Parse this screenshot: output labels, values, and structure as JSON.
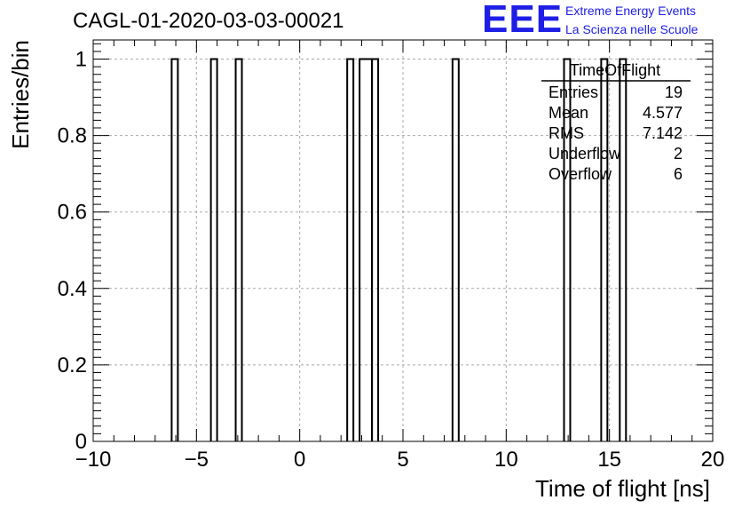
{
  "header": {
    "title": "CAGL-01-2020-03-03-00021",
    "logo_text": "EEE",
    "logo_line1": "Extreme Energy Events",
    "logo_line2": "La Scienza nelle Scuole",
    "logo_color": "#1e1ee6"
  },
  "stats_box": {
    "title": "TimeOfFlight",
    "rows": [
      {
        "label": "Entries",
        "value": "19"
      },
      {
        "label": "Mean",
        "value": "4.577"
      },
      {
        "label": "RMS",
        "value": "7.142"
      },
      {
        "label": "Underflow",
        "value": "2"
      },
      {
        "label": "Overflow",
        "value": "6"
      }
    ]
  },
  "chart_data": {
    "type": "bar",
    "histogram": true,
    "xlabel": "Time of flight [ns]",
    "ylabel": "Entries/bin",
    "xlim": [
      -10,
      20
    ],
    "ylim": [
      0,
      1.05
    ],
    "grid": true,
    "x_ticks": [
      "−10",
      "−5",
      "0",
      "5",
      "10",
      "15",
      "20"
    ],
    "y_ticks": [
      "0",
      "0.2",
      "0.4",
      "0.6",
      "0.8",
      "1"
    ],
    "bins": [
      {
        "x0": -6.2,
        "x1": -5.9,
        "count": 1
      },
      {
        "x0": -4.3,
        "x1": -4.0,
        "count": 1
      },
      {
        "x0": -3.1,
        "x1": -2.8,
        "count": 1
      },
      {
        "x0": 2.3,
        "x1": 2.6,
        "count": 1
      },
      {
        "x0": 2.9,
        "x1": 3.5,
        "count": 1
      },
      {
        "x0": 3.5,
        "x1": 3.8,
        "count": 1
      },
      {
        "x0": 7.4,
        "x1": 7.7,
        "count": 1
      },
      {
        "x0": 12.8,
        "x1": 13.1,
        "count": 1
      },
      {
        "x0": 14.6,
        "x1": 14.9,
        "count": 1
      },
      {
        "x0": 15.5,
        "x1": 15.8,
        "count": 1
      }
    ]
  }
}
